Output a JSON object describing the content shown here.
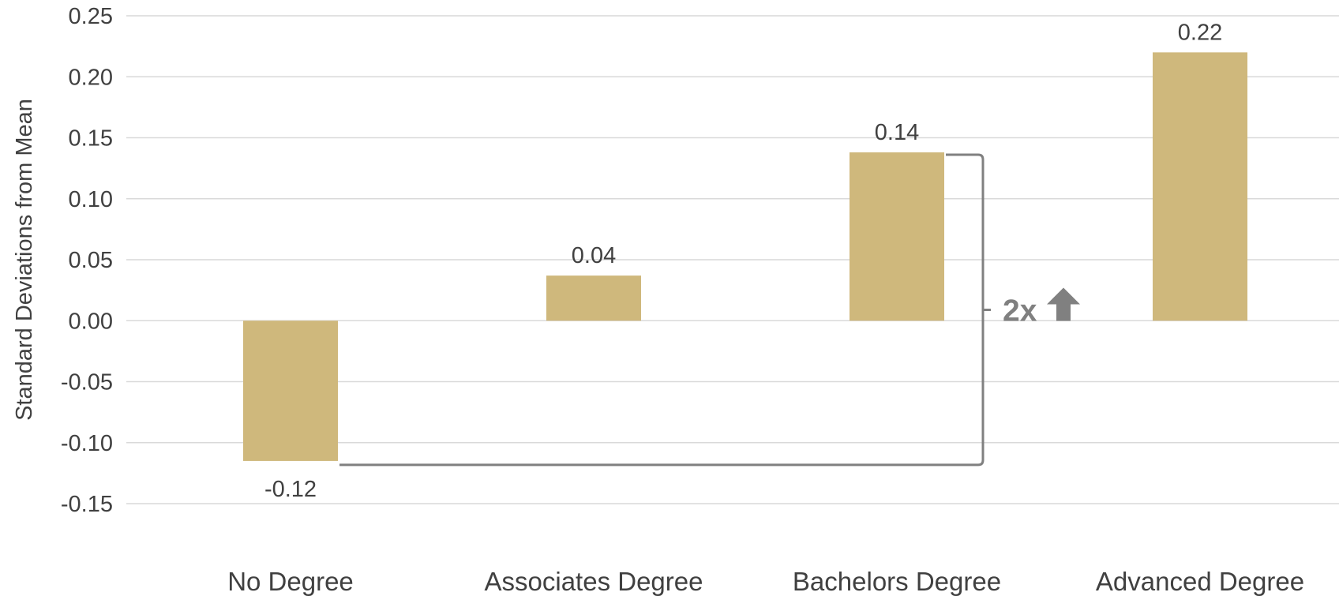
{
  "chart_data": {
    "type": "bar",
    "categories": [
      "No Degree",
      "Associates Degree",
      "Bachelors Degree",
      "Advanced Degree"
    ],
    "values": [
      -0.115,
      0.037,
      0.138,
      0.22
    ],
    "data_labels": [
      "-0.12",
      "0.04",
      "0.14",
      "0.22"
    ],
    "ylabel": "Standard Deviations from Mean",
    "ylim": [
      -0.15,
      0.25
    ],
    "yticks": [
      0.25,
      0.2,
      0.15,
      0.1,
      0.05,
      0.0,
      -0.05,
      -0.1,
      -0.15
    ],
    "ytick_labels": [
      "0.25",
      "0.20",
      "0.15",
      "0.10",
      "0.05",
      "0.00",
      "-0.05",
      "-0.10",
      "-0.15"
    ],
    "grid": true,
    "bar_color": "#cfb87c",
    "annotation": {
      "text": "2x",
      "icon": "up-arrow-icon",
      "from_category": "No Degree",
      "to_category": "Bachelors Degree",
      "color": "#808080"
    }
  }
}
